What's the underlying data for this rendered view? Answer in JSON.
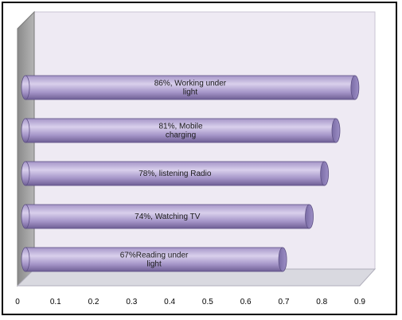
{
  "chart_data": {
    "type": "bar",
    "orientation": "horizontal",
    "three_d": true,
    "categories": [
      "Reading under light",
      "Watching TV",
      "listening Radio",
      "Mobile charging",
      "Working under light"
    ],
    "values": [
      0.67,
      0.74,
      0.78,
      0.81,
      0.86
    ],
    "data_labels": [
      [
        "67%Reading under",
        "light"
      ],
      [
        "74%, Watching TV"
      ],
      [
        "78%, listening Radio"
      ],
      [
        "81%, Mobile",
        "charging"
      ],
      [
        "86%, Working under",
        "light"
      ]
    ],
    "xlim": [
      0,
      0.9
    ],
    "x_ticks": [
      "0",
      "0.1",
      "0.2",
      "0.3",
      "0.4",
      "0.5",
      "0.6",
      "0.7",
      "0.8",
      "0.9"
    ],
    "title": "",
    "xlabel": "",
    "ylabel": "",
    "grid": false,
    "legend": "none",
    "colors": {
      "bar_light": "#d9d0ec",
      "bar_mid": "#a595c8",
      "bar_dark": "#6e5f95",
      "bar_cap": "#8a7cb5",
      "back_wall": "#eeeaf3",
      "side_wall": "#9a9a9a",
      "floor": "#d9d9e0"
    }
  }
}
